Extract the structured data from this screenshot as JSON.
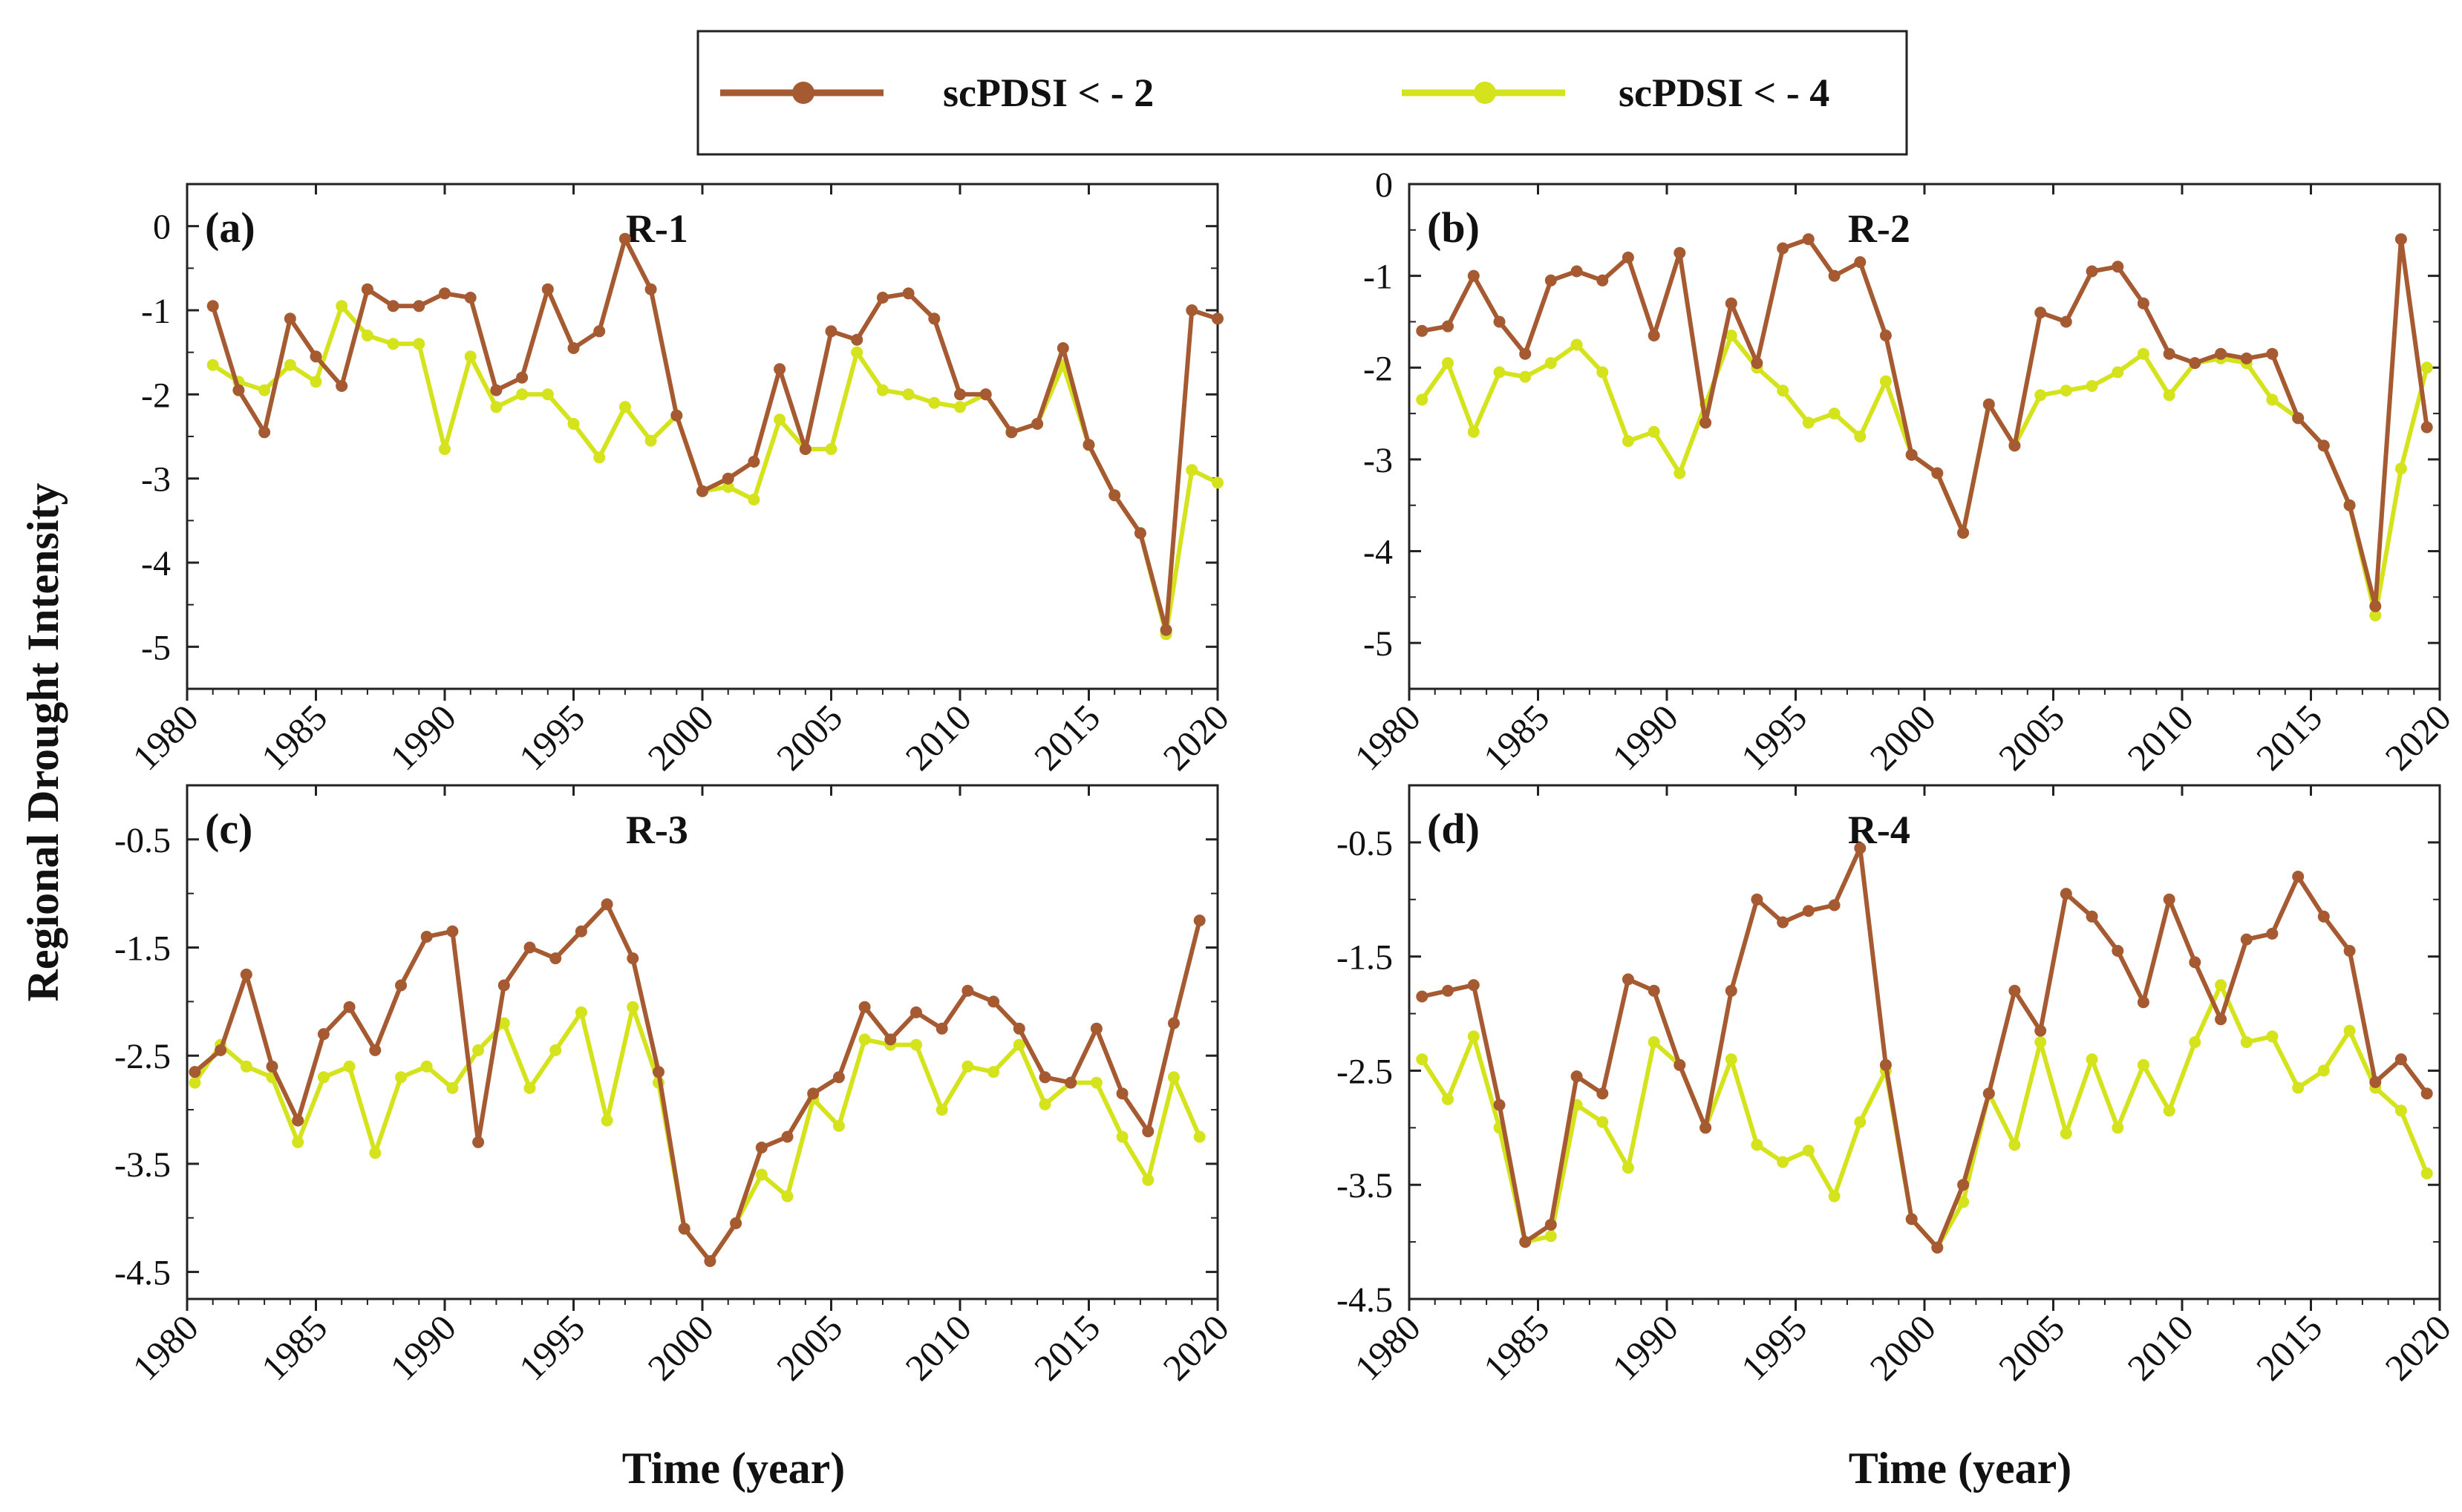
{
  "legend": {
    "items": [
      {
        "label": "scPDSI < - 2",
        "color": "#A55A32"
      },
      {
        "label": "scPDSI < - 4",
        "color": "#D4E31C"
      }
    ]
  },
  "axes": {
    "ylabel": "Regional Drought Intensity",
    "xlabel": "Time (year)"
  },
  "chart_data": [
    {
      "type": "line",
      "panel": "(a)",
      "region": "R-1",
      "xlim": [
        1980,
        2020
      ],
      "ylim": [
        -5.5,
        0.5
      ],
      "yticks": [
        0,
        -1,
        -2,
        -3,
        -4,
        -5
      ],
      "xticks": [
        1980,
        1985,
        1990,
        1995,
        2000,
        2005,
        2010,
        2015,
        2020
      ],
      "x": [
        1981,
        1982,
        1983,
        1984,
        1985,
        1986,
        1987,
        1988,
        1989,
        1990,
        1991,
        1992,
        1993,
        1994,
        1995,
        1996,
        1997,
        1998,
        1999,
        2000,
        2001,
        2002,
        2003,
        2004,
        2005,
        2006,
        2007,
        2008,
        2009,
        2010,
        2011,
        2012,
        2013,
        2014,
        2015,
        2016,
        2017,
        2018,
        2019,
        2020
      ],
      "series": [
        {
          "name": "scPDSI < - 2",
          "values": [
            -0.95,
            -1.95,
            -2.45,
            -1.1,
            -1.55,
            -1.9,
            -0.75,
            -0.95,
            -0.95,
            -0.8,
            -0.85,
            -1.95,
            -1.8,
            -0.75,
            -1.45,
            -1.25,
            -0.15,
            -0.75,
            -2.25,
            -3.15,
            -3.0,
            -2.8,
            -1.7,
            -2.65,
            -1.25,
            -1.35,
            -0.85,
            -0.8,
            -1.1,
            -2.0,
            -2.0,
            -2.45,
            -2.35,
            -1.45,
            -2.6,
            -3.2,
            -3.65,
            -4.8,
            -1.0,
            -1.1
          ]
        },
        {
          "name": "scPDSI < - 4",
          "values": [
            -1.65,
            -1.85,
            -1.95,
            -1.65,
            -1.85,
            -0.95,
            -1.3,
            -1.4,
            -1.4,
            -2.65,
            -1.55,
            -2.15,
            -2.0,
            -2.0,
            -2.35,
            -2.75,
            -2.15,
            -2.55,
            -2.25,
            -3.15,
            -3.1,
            -3.25,
            -2.3,
            -2.65,
            -2.65,
            -1.5,
            -1.95,
            -2.0,
            -2.1,
            -2.15,
            -2.0,
            -2.45,
            -2.35,
            -1.65,
            -2.6,
            -3.2,
            -3.65,
            -4.85,
            -2.9,
            -3.05
          ]
        }
      ]
    },
    {
      "type": "line",
      "panel": "(b)",
      "region": "R-2",
      "xlim": [
        1980,
        2020
      ],
      "ylim": [
        -5.5,
        0
      ],
      "yticks": [
        0,
        -1,
        -2,
        -3,
        -4,
        -5
      ],
      "xticks": [
        1980,
        1985,
        1990,
        1995,
        2000,
        2005,
        2010,
        2015,
        2020
      ],
      "x": [
        1980.5,
        1981.5,
        1982.5,
        1983.5,
        1984.5,
        1985.5,
        1986.5,
        1987.5,
        1988.5,
        1989.5,
        1990.5,
        1991.5,
        1992.5,
        1993.5,
        1994.5,
        1995.5,
        1996.5,
        1997.5,
        1998.5,
        1999.5,
        2000.5,
        2001.5,
        2002.5,
        2003.5,
        2004.5,
        2005.5,
        2006.5,
        2007.5,
        2008.5,
        2009.5,
        2010.5,
        2011.5,
        2012.5,
        2013.5,
        2014.5,
        2015.5,
        2016.5,
        2017.5,
        2018.5,
        2019.5
      ],
      "series": [
        {
          "name": "scPDSI < - 2",
          "values": [
            -1.6,
            -1.55,
            -1.0,
            -1.5,
            -1.85,
            -1.05,
            -0.95,
            -1.05,
            -0.8,
            -1.65,
            -0.75,
            -2.6,
            -1.3,
            -1.95,
            -0.7,
            -0.6,
            -1.0,
            -0.85,
            -1.65,
            -2.95,
            -3.15,
            -3.8,
            -2.4,
            -2.85,
            -1.4,
            -1.5,
            -0.95,
            -0.9,
            -1.3,
            -1.85,
            -1.95,
            -1.85,
            -1.9,
            -1.85,
            -2.55,
            -2.85,
            -3.5,
            -4.6,
            -0.6,
            -2.65
          ]
        },
        {
          "name": "scPDSI < - 4",
          "values": [
            -2.35,
            -1.95,
            -2.7,
            -2.05,
            -2.1,
            -1.95,
            -1.75,
            -2.05,
            -2.8,
            -2.7,
            -3.15,
            -2.4,
            -1.65,
            -2.0,
            -2.25,
            -2.6,
            -2.5,
            -2.75,
            -2.15,
            -2.95,
            -3.15,
            -3.8,
            -2.4,
            -2.85,
            -2.3,
            -2.25,
            -2.2,
            -2.05,
            -1.85,
            -2.3,
            -1.95,
            -1.9,
            -1.95,
            -2.35,
            -2.55,
            -2.85,
            -3.5,
            -4.7,
            -3.1,
            -2.0
          ]
        }
      ]
    },
    {
      "type": "line",
      "panel": "(c)",
      "region": "R-3",
      "xlim": [
        1980,
        2020
      ],
      "ylim": [
        -4.75,
        0
      ],
      "yticks": [
        -0.5,
        -1.5,
        -2.5,
        -3.5,
        -4.5
      ],
      "xticks": [
        1980,
        1985,
        1990,
        1995,
        2000,
        2005,
        2010,
        2015,
        2020
      ],
      "x": [
        1980.3,
        1981.3,
        1982.3,
        1983.3,
        1984.3,
        1985.3,
        1986.3,
        1987.3,
        1988.3,
        1989.3,
        1990.3,
        1991.3,
        1992.3,
        1993.3,
        1994.3,
        1995.3,
        1996.3,
        1997.3,
        1998.3,
        1999.3,
        2000.3,
        2001.3,
        2002.3,
        2003.3,
        2004.3,
        2005.3,
        2006.3,
        2007.3,
        2008.3,
        2009.3,
        2010.3,
        2011.3,
        2012.3,
        2013.3,
        2014.3,
        2015.3,
        2016.3,
        2017.3,
        2018.3,
        2019.3
      ],
      "series": [
        {
          "name": "scPDSI < - 2",
          "values": [
            -2.65,
            -2.45,
            -1.75,
            -2.6,
            -3.1,
            -2.3,
            -2.05,
            -2.45,
            -1.85,
            -1.4,
            -1.35,
            -3.3,
            -1.85,
            -1.5,
            -1.6,
            -1.35,
            -1.1,
            -1.6,
            -2.65,
            -4.1,
            -4.4,
            -4.05,
            -3.35,
            -3.25,
            -2.85,
            -2.7,
            -2.05,
            -2.35,
            -2.1,
            -2.25,
            -1.9,
            -2.0,
            -2.25,
            -2.7,
            -2.75,
            -2.25,
            -2.85,
            -3.2,
            -2.2,
            -1.25
          ]
        },
        {
          "name": "scPDSI < - 4",
          "values": [
            -2.75,
            -2.4,
            -2.6,
            -2.7,
            -3.3,
            -2.7,
            -2.6,
            -3.4,
            -2.7,
            -2.6,
            -2.8,
            -2.45,
            -2.2,
            -2.8,
            -2.45,
            -2.1,
            -3.1,
            -2.05,
            -2.75,
            -4.1,
            -4.4,
            -4.05,
            -3.6,
            -3.8,
            -2.9,
            -3.15,
            -2.35,
            -2.4,
            -2.4,
            -3.0,
            -2.6,
            -2.65,
            -2.4,
            -2.95,
            -2.75,
            -2.75,
            -3.25,
            -3.65,
            -2.7,
            -3.25
          ]
        }
      ]
    },
    {
      "type": "line",
      "panel": "(d)",
      "region": "R-4",
      "xlim": [
        1980,
        2020
      ],
      "ylim": [
        -4.5,
        0
      ],
      "yticks": [
        -0.5,
        -1.5,
        -2.5,
        -3.5,
        -4.5
      ],
      "xticks": [
        1980,
        1985,
        1990,
        1995,
        2000,
        2005,
        2010,
        2015,
        2020
      ],
      "x": [
        1980.5,
        1981.5,
        1982.5,
        1983.5,
        1984.5,
        1985.5,
        1986.5,
        1987.5,
        1988.5,
        1989.5,
        1990.5,
        1991.5,
        1992.5,
        1993.5,
        1994.5,
        1995.5,
        1996.5,
        1997.5,
        1998.5,
        1999.5,
        2000.5,
        2001.5,
        2002.5,
        2003.5,
        2004.5,
        2005.5,
        2006.5,
        2007.5,
        2008.5,
        2009.5,
        2010.5,
        2011.5,
        2012.5,
        2013.5,
        2014.5,
        2015.5,
        2016.5,
        2017.5,
        2018.5,
        2019.5
      ],
      "series": [
        {
          "name": "scPDSI < - 2",
          "values": [
            -1.85,
            -1.8,
            -1.75,
            -2.8,
            -4.0,
            -3.85,
            -2.55,
            -2.7,
            -1.7,
            -1.8,
            -2.45,
            -3.0,
            -1.8,
            -1.0,
            -1.2,
            -1.1,
            -1.05,
            -0.55,
            -2.45,
            -3.8,
            -4.05,
            -3.5,
            -2.7,
            -1.8,
            -2.15,
            -0.95,
            -1.15,
            -1.45,
            -1.9,
            -1.0,
            -1.55,
            -2.05,
            -1.35,
            -1.3,
            -0.8,
            -1.15,
            -1.45,
            -2.6,
            -2.4,
            -2.7
          ]
        },
        {
          "name": "scPDSI < - 4",
          "values": [
            -2.4,
            -2.75,
            -2.2,
            -3.0,
            -4.0,
            -3.95,
            -2.8,
            -2.95,
            -3.35,
            -2.25,
            -2.45,
            -3.0,
            -2.4,
            -3.15,
            -3.3,
            -3.2,
            -3.6,
            -2.95,
            -2.5,
            -3.8,
            -4.05,
            -3.65,
            -2.7,
            -3.15,
            -2.25,
            -3.05,
            -2.4,
            -3.0,
            -2.45,
            -2.85,
            -2.25,
            -1.75,
            -2.25,
            -2.2,
            -2.65,
            -2.5,
            -2.15,
            -2.65,
            -2.85,
            -3.4
          ]
        }
      ]
    }
  ]
}
